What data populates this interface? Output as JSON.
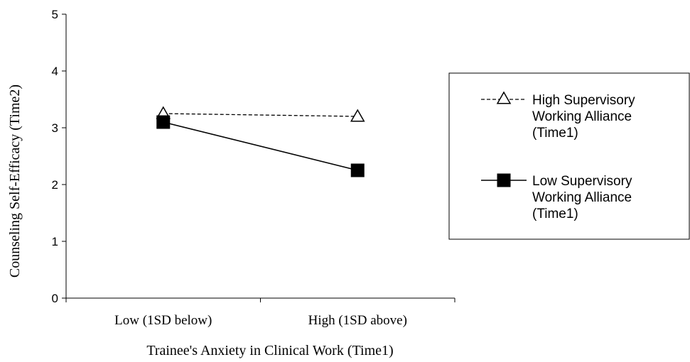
{
  "chart_data": {
    "type": "line",
    "categories": [
      "Low (1SD below)",
      "High (1SD above)"
    ],
    "series": [
      {
        "name": "High Supervisory Working Alliance (Time1)",
        "name_lines": [
          "High Supervisory",
          "Working Alliance",
          "(Time1)"
        ],
        "values": [
          3.25,
          3.2
        ],
        "line_style": "dashed",
        "marker": "open-triangle",
        "color": "#000000"
      },
      {
        "name": "Low Supervisory Working Alliance (Time1)",
        "name_lines": [
          "Low Supervisory",
          "Working Alliance",
          "(Time1)"
        ],
        "values": [
          3.1,
          2.25
        ],
        "line_style": "solid",
        "marker": "filled-square",
        "color": "#000000"
      }
    ],
    "xlabel": "Trainee's Anxiety in Clinical Work (Time1)",
    "ylabel": "Counseling Self-Efficacy (Time2)",
    "ylim": [
      0,
      5
    ],
    "yticks": [
      0,
      1,
      2,
      3,
      4,
      5
    ],
    "grid": false,
    "legend": "right"
  }
}
